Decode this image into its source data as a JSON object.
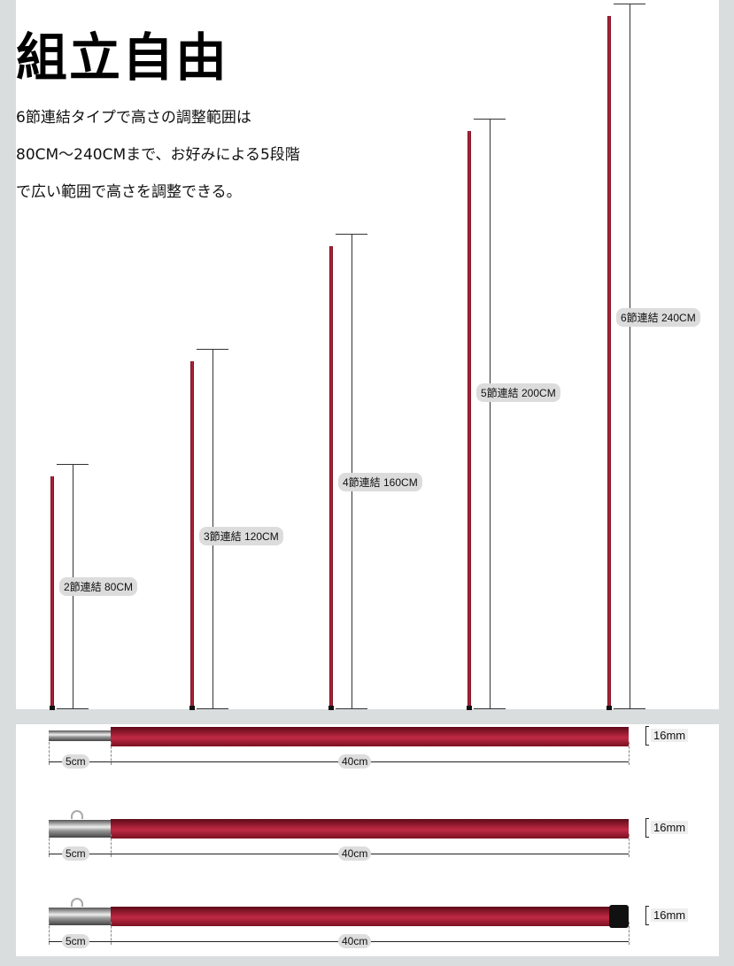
{
  "title": "組立自由",
  "description": [
    "6節連結タイプで高さの調整範囲は",
    "80CM〜240CMまで、お好みによる5段階",
    "で広い範囲で高さを調整できる。"
  ],
  "configurations": [
    {
      "label": "2節連結 80CM",
      "height_cm": 80
    },
    {
      "label": "3節連結 120CM",
      "height_cm": 120
    },
    {
      "label": "4節連結 160CM",
      "height_cm": 160
    },
    {
      "label": "5節連結 200CM",
      "height_cm": 200
    },
    {
      "label": "6節連結 240CM",
      "height_cm": 240
    }
  ],
  "segments": [
    {
      "type": "top",
      "joint_label": "5cm",
      "length_label": "40cm",
      "diameter_label": "16mm"
    },
    {
      "type": "middle",
      "joint_label": "5cm",
      "length_label": "40cm",
      "diameter_label": "16mm"
    },
    {
      "type": "bottom",
      "joint_label": "5cm",
      "length_label": "40cm",
      "diameter_label": "16mm"
    }
  ],
  "colors": {
    "pole": "#a81c34",
    "background": "#d9dddd"
  }
}
